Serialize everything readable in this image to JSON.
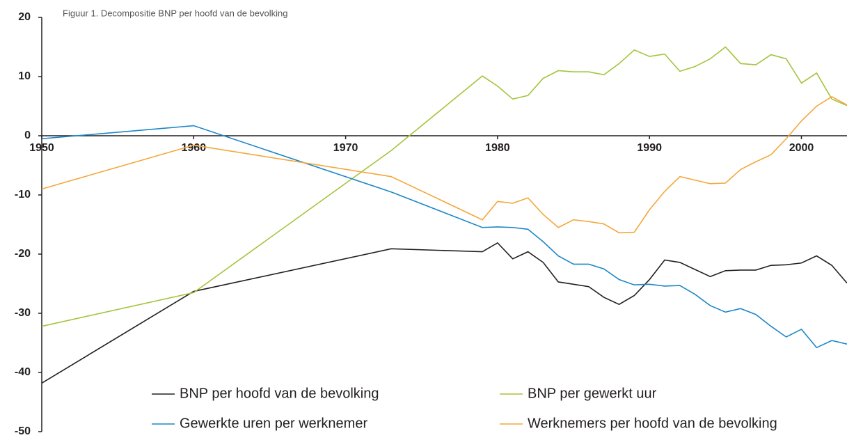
{
  "chart_data": {
    "type": "line",
    "title": "Figuur 1. Decompositie BNP per hoofd van de bevolking",
    "x": [
      1950,
      1960,
      1973,
      1979,
      1980,
      1981,
      1982,
      1983,
      1984,
      1985,
      1986,
      1987,
      1988,
      1989,
      1990,
      1991,
      1992,
      1993,
      1994,
      1995,
      1996,
      1997,
      1998,
      1999,
      2000,
      2001,
      2002,
      2003
    ],
    "series": [
      {
        "name": "BNP per hoofd van de bevolking",
        "color": "#231f20",
        "values": [
          -41.8,
          -26.3,
          -19.1,
          -19.6,
          -18.1,
          -20.8,
          -19.6,
          -21.4,
          -24.7,
          -25.1,
          -25.5,
          -27.3,
          -28.5,
          -27.0,
          -24.3,
          -21.0,
          -21.4,
          -22.6,
          -23.8,
          -22.8,
          -22.7,
          -22.7,
          -21.9,
          -21.8,
          -21.5,
          -20.3,
          -21.9,
          -24.9
        ]
      },
      {
        "name": "BNP per gewerkt uur",
        "color": "#a3c43b",
        "values": [
          -32.2,
          -26.5,
          -2.5,
          10.1,
          8.4,
          6.2,
          6.8,
          9.7,
          11.0,
          10.8,
          10.8,
          10.3,
          12.2,
          14.5,
          13.4,
          13.8,
          10.9,
          11.7,
          13.0,
          15.0,
          12.2,
          12.0,
          13.7,
          13.0,
          8.9,
          10.6,
          6.2,
          5.1
        ]
      },
      {
        "name": "Gewerkte uren per werknemer",
        "color": "#1b87c8",
        "values": [
          -0.5,
          1.7,
          -9.5,
          -15.5,
          -15.4,
          -15.5,
          -15.8,
          -17.9,
          -20.3,
          -21.7,
          -21.7,
          -22.5,
          -24.3,
          -25.2,
          -25.1,
          -25.4,
          -25.3,
          -26.8,
          -28.7,
          -29.8,
          -29.2,
          -30.2,
          -32.2,
          -34.0,
          -32.7,
          -35.8,
          -34.6,
          -35.2
        ]
      },
      {
        "name": "Werknemers per hoofd van de bevolking",
        "color": "#f4a73a",
        "values": [
          -9.0,
          -1.6,
          -6.9,
          -14.2,
          -11.1,
          -11.4,
          -10.5,
          -13.3,
          -15.5,
          -14.2,
          -14.5,
          -14.9,
          -16.4,
          -16.3,
          -12.5,
          -9.4,
          -6.9,
          -7.5,
          -8.1,
          -8.0,
          -5.7,
          -4.4,
          -3.2,
          -0.5,
          2.5,
          5.0,
          6.6,
          5.2
        ]
      }
    ],
    "xlim": [
      1950,
      2003
    ],
    "xticks": [
      1950,
      1960,
      1970,
      1980,
      1990,
      2000
    ],
    "ylim": [
      -50,
      20
    ],
    "yticks": [
      -50,
      -40,
      -30,
      -20,
      -10,
      0,
      10,
      20
    ],
    "grid": false,
    "legend": "bottom"
  }
}
